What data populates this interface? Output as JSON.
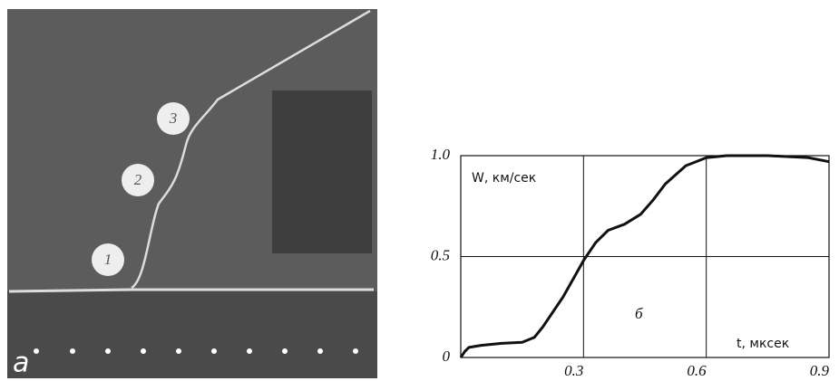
{
  "photo": {
    "markers": [
      "1",
      "2",
      "3"
    ],
    "panel_label": "а"
  },
  "chart_data": {
    "type": "line",
    "y_label": "W, км/сек",
    "x_label": "t, мксек",
    "panel_label": "б",
    "x": [
      0,
      0.01,
      0.02,
      0.05,
      0.1,
      0.15,
      0.18,
      0.2,
      0.25,
      0.3,
      0.33,
      0.36,
      0.4,
      0.44,
      0.47,
      0.5,
      0.55,
      0.6,
      0.65,
      0.75,
      0.85,
      0.9
    ],
    "series": [
      {
        "color": "#111111",
        "values": [
          0,
          0.03,
          0.05,
          0.06,
          0.07,
          0.075,
          0.1,
          0.15,
          0.3,
          0.48,
          0.57,
          0.63,
          0.66,
          0.71,
          0.78,
          0.86,
          0.95,
          0.99,
          1.0,
          1.0,
          0.99,
          0.97
        ]
      }
    ],
    "xlim": [
      0,
      0.9
    ],
    "ylim": [
      0,
      1
    ],
    "xticks": [
      0.3,
      0.6,
      0.9
    ],
    "yticks": [
      {
        "value": 1,
        "label": "1.0"
      },
      0.5,
      0
    ],
    "grid": true
  }
}
